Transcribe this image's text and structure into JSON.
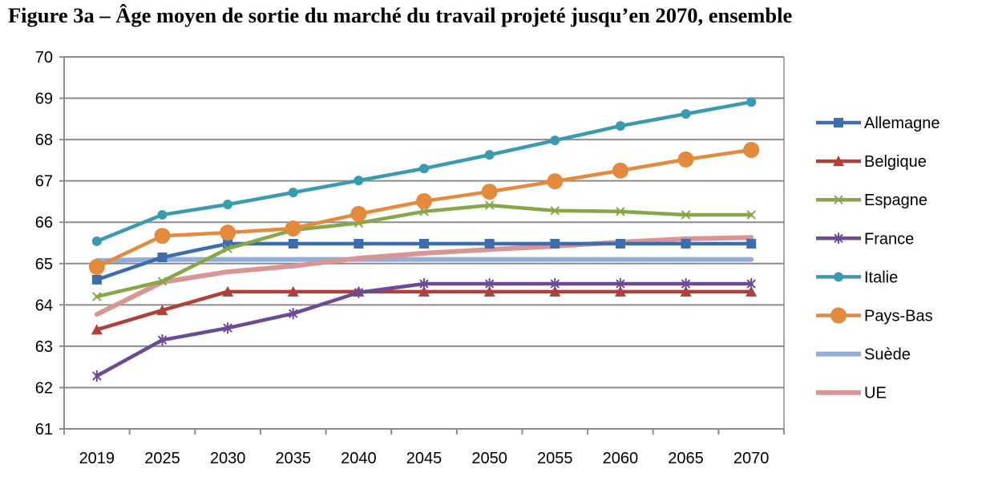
{
  "chart_data": {
    "type": "line",
    "title": "Figure 3a – Âge moyen de sortie du marché du travail projeté jusqu’en 2070, ensemble",
    "xlabel": "",
    "ylabel": "",
    "ylim": [
      61,
      70
    ],
    "yticks": [
      "61",
      "62",
      "63",
      "64",
      "65",
      "66",
      "67",
      "68",
      "69",
      "70"
    ],
    "categories": [
      "2019",
      "2025",
      "2030",
      "2035",
      "2040",
      "2045",
      "2050",
      "2055",
      "2060",
      "2065",
      "2070"
    ],
    "grid": true,
    "legend_position": "right",
    "series": [
      {
        "name": "Allemagne",
        "color": "#3E6DAE",
        "marker": "square",
        "values": [
          64.61,
          65.15,
          65.48,
          65.48,
          65.48,
          65.48,
          65.48,
          65.48,
          65.48,
          65.48,
          65.48
        ]
      },
      {
        "name": "Belgique",
        "color": "#B0403A",
        "marker": "triangle",
        "values": [
          63.4,
          63.87,
          64.32,
          64.32,
          64.32,
          64.32,
          64.32,
          64.32,
          64.32,
          64.32,
          64.32
        ]
      },
      {
        "name": "Espagne",
        "color": "#86A648",
        "marker": "x",
        "values": [
          64.2,
          64.57,
          65.36,
          65.81,
          65.98,
          66.26,
          66.41,
          66.28,
          66.26,
          66.18,
          66.18
        ]
      },
      {
        "name": "France",
        "color": "#6C4A94",
        "marker": "star",
        "values": [
          62.28,
          63.15,
          63.44,
          63.79,
          64.3,
          64.51,
          64.51,
          64.51,
          64.51,
          64.51,
          64.51
        ]
      },
      {
        "name": "Italie",
        "color": "#3A9AB0",
        "marker": "circle",
        "values": [
          65.54,
          66.18,
          66.43,
          66.72,
          67.01,
          67.3,
          67.63,
          67.98,
          68.33,
          68.62,
          68.91
        ]
      },
      {
        "name": "Pays-Bas",
        "color": "#E48A3C",
        "marker": "bigcircle",
        "values": [
          64.92,
          65.67,
          65.75,
          65.85,
          66.2,
          66.51,
          66.74,
          66.99,
          67.25,
          67.52,
          67.75
        ]
      },
      {
        "name": "Suède",
        "color": "#93AED6",
        "marker": "none",
        "values": [
          65.07,
          65.1,
          65.1,
          65.1,
          65.1,
          65.1,
          65.1,
          65.1,
          65.1,
          65.1,
          65.1
        ]
      },
      {
        "name": "UE",
        "color": "#D99594",
        "marker": "none",
        "values": [
          63.77,
          64.55,
          64.8,
          64.94,
          65.13,
          65.25,
          65.34,
          65.42,
          65.52,
          65.6,
          65.63
        ]
      }
    ]
  }
}
